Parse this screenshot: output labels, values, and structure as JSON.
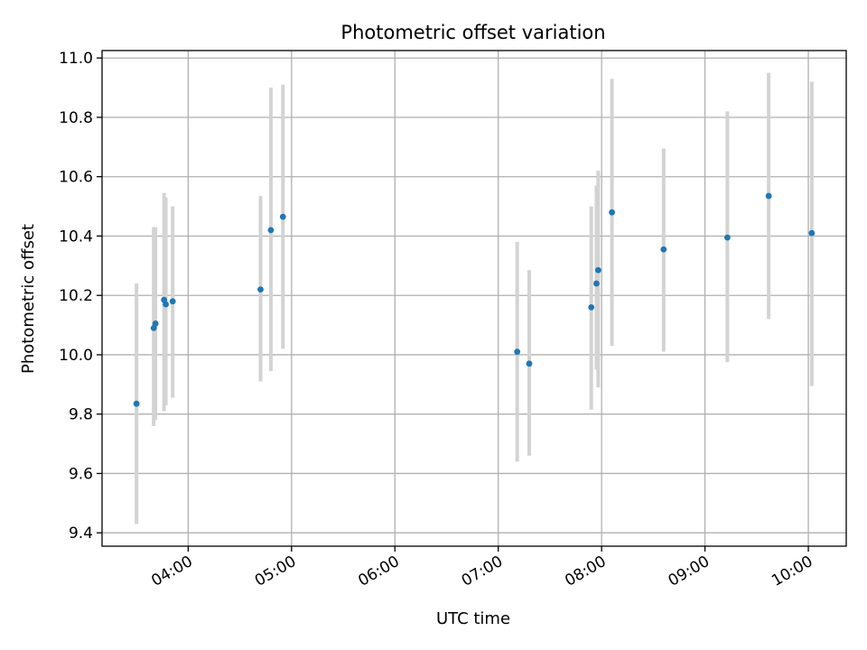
{
  "chart_data": {
    "type": "scatter",
    "title": "Photometric offset variation",
    "xlabel": "UTC time",
    "ylabel": "Photometric offset",
    "xlim": [
      "03:10",
      "10:22"
    ],
    "ylim": [
      9.355,
      11.025
    ],
    "xticks": [
      "04:00",
      "05:00",
      "06:00",
      "07:00",
      "08:00",
      "09:00",
      "10:00"
    ],
    "yticks": [
      9.4,
      9.6,
      9.8,
      10.0,
      10.2,
      10.4,
      10.6,
      10.8,
      11.0
    ],
    "ytick_labels": [
      "9.4",
      "9.6",
      "9.8",
      "10.0",
      "10.2",
      "10.4",
      "10.6",
      "10.8",
      "11.0"
    ],
    "grid": true,
    "colors": {
      "points": "#1f77b4",
      "errorbars": "#d3d3d3",
      "grid": "#b0b0b0"
    },
    "points": [
      {
        "x": "03:30",
        "y": 9.835,
        "ylow": 9.43,
        "yhigh": 10.24
      },
      {
        "x": "03:40",
        "y": 10.09,
        "ylow": 9.76,
        "yhigh": 10.43
      },
      {
        "x": "03:41",
        "y": 10.105,
        "ylow": 9.78,
        "yhigh": 10.43
      },
      {
        "x": "03:46",
        "y": 10.185,
        "ylow": 9.81,
        "yhigh": 10.545
      },
      {
        "x": "03:47",
        "y": 10.17,
        "ylow": 9.83,
        "yhigh": 10.53
      },
      {
        "x": "03:51",
        "y": 10.18,
        "ylow": 9.855,
        "yhigh": 10.5
      },
      {
        "x": "04:42",
        "y": 10.22,
        "ylow": 9.91,
        "yhigh": 10.535
      },
      {
        "x": "04:48",
        "y": 10.42,
        "ylow": 9.945,
        "yhigh": 10.9
      },
      {
        "x": "04:55",
        "y": 10.465,
        "ylow": 10.02,
        "yhigh": 10.91
      },
      {
        "x": "07:11",
        "y": 10.01,
        "ylow": 9.64,
        "yhigh": 10.38
      },
      {
        "x": "07:18",
        "y": 9.97,
        "ylow": 9.66,
        "yhigh": 10.285
      },
      {
        "x": "07:54",
        "y": 10.16,
        "ylow": 9.815,
        "yhigh": 10.5
      },
      {
        "x": "07:57",
        "y": 10.24,
        "ylow": 9.95,
        "yhigh": 10.57
      },
      {
        "x": "07:58",
        "y": 10.285,
        "ylow": 9.89,
        "yhigh": 10.62
      },
      {
        "x": "08:06",
        "y": 10.48,
        "ylow": 10.03,
        "yhigh": 10.93
      },
      {
        "x": "08:36",
        "y": 10.355,
        "ylow": 10.01,
        "yhigh": 10.695
      },
      {
        "x": "09:13",
        "y": 10.395,
        "ylow": 9.975,
        "yhigh": 10.82
      },
      {
        "x": "09:37",
        "y": 10.535,
        "ylow": 10.12,
        "yhigh": 10.95
      },
      {
        "x": "10:02",
        "y": 10.41,
        "ylow": 9.895,
        "yhigh": 10.92
      }
    ]
  }
}
